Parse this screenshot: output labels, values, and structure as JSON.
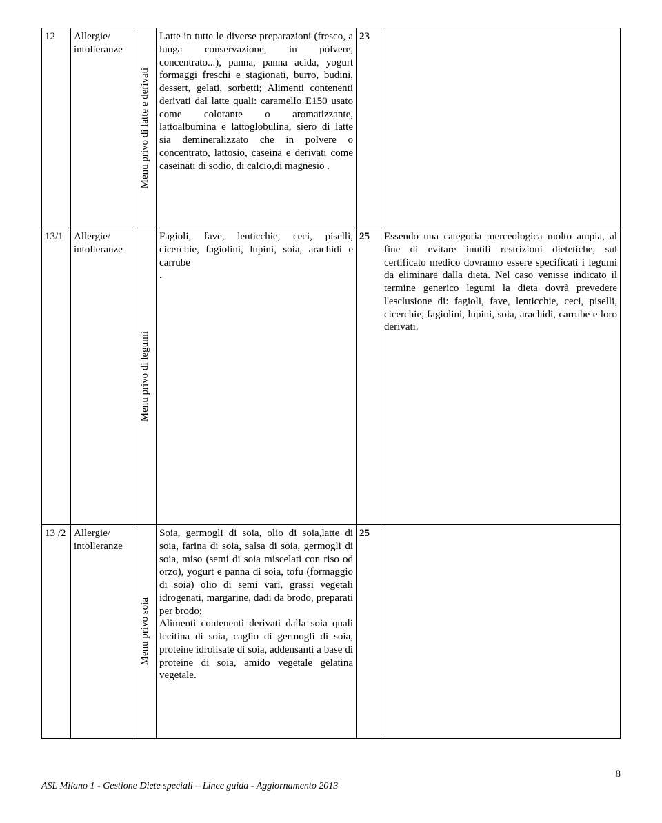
{
  "rows": [
    {
      "num": "12",
      "category": "Allergie/ intolleranze",
      "menu_label": "Menu privo di latte e derivati",
      "description": "Latte in tutte le diverse preparazioni (fresco, a lunga conservazione, in polvere, concentrato...), panna, panna acida, yogurt formaggi freschi e stagionati, burro, budini, dessert, gelati, sorbetti; Alimenti contenenti derivati dal latte quali: caramello E150 usato come colorante o aromatizzante, lattoalbumina e lattoglobulina, siero di latte sia demineralizzato che in polvere o concentrato, lattosio, caseina e derivati come caseinati di sodio, di calcio,di magnesio .",
      "page": "23",
      "notes": ""
    },
    {
      "num": "13/1",
      "category": "Allergie/ intolleranze",
      "menu_label": "Menu privo di legumi",
      "description": "Fagioli, fave, lenticchie, ceci, piselli, cicerchie, fagiolini, lupini, soia, arachidi e carrube\n.",
      "page": "25",
      "notes": "Essendo una categoria merceologica molto ampia, al fine di evitare inutili restrizioni dietetiche, sul certificato medico dovranno essere specificati i legumi da eliminare dalla dieta. Nel caso venisse indicato il termine generico legumi la dieta dovrà prevedere l'esclusione di: fagioli, fave, lenticchie, ceci, piselli, cicerchie, fagiolini, lupini, soia, arachidi, carrube e loro derivati."
    },
    {
      "num": "13 /2",
      "category": "Allergie/ intolleranze",
      "menu_label": "Menu privo soia",
      "description": "Soia, germogli di soia, olio di soia,latte di soia, farina di soia, salsa di soia, germogli di soia, miso (semi di soia miscelati con riso od orzo), yogurt e panna di soia, tofu (formaggio di soia) olio di semi vari, grassi vegetali idrogenati, margarine, dadi da brodo, preparati per brodo;\nAlimenti contenenti derivati dalla soia quali lecitina di soia, caglio di germogli di soia, proteine idrolisate di soia, addensanti a base di proteine di soia, amido vegetale gelatina vegetale.",
      "page": "25",
      "notes": ""
    }
  ],
  "row_heights": [
    "290px",
    "430px",
    "310px"
  ],
  "footer": "ASL Milano 1 - Gestione Diete speciali – Linee guida -  Aggiornamento 2013",
  "page_number": "8"
}
